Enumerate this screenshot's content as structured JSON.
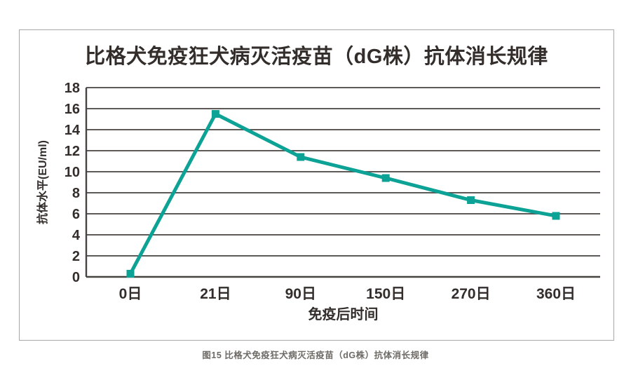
{
  "page": {
    "caption": "图15 比格犬免疫狂犬病灭活疫苗（dG株）抗体消长规律"
  },
  "chart_data": {
    "type": "line",
    "title": "比格犬免疫狂犬病灭活疫苗（dG株）抗体消长规律",
    "categories": [
      "0日",
      "21日",
      "90日",
      "150日",
      "270日",
      "360日"
    ],
    "series": [
      {
        "name": "抗体水平",
        "values": [
          0.3,
          15.5,
          11.4,
          9.4,
          7.3,
          5.8
        ]
      }
    ],
    "xlabel": "免疫后时间",
    "ylabel": "抗体水平(EU/ml)",
    "ylim": [
      0,
      18
    ],
    "ytick_step": 2,
    "yticks": [
      0,
      2,
      4,
      6,
      8,
      10,
      12,
      14,
      16,
      18
    ],
    "grid": "horizontal-only",
    "legend": "none",
    "marker": "square",
    "colors": {
      "line": "#0CA295",
      "grid": "#474340",
      "axis": "#474340",
      "text": "#332E2B",
      "caption": "#6E6A66",
      "frame_border": "#A8A8A8"
    }
  }
}
